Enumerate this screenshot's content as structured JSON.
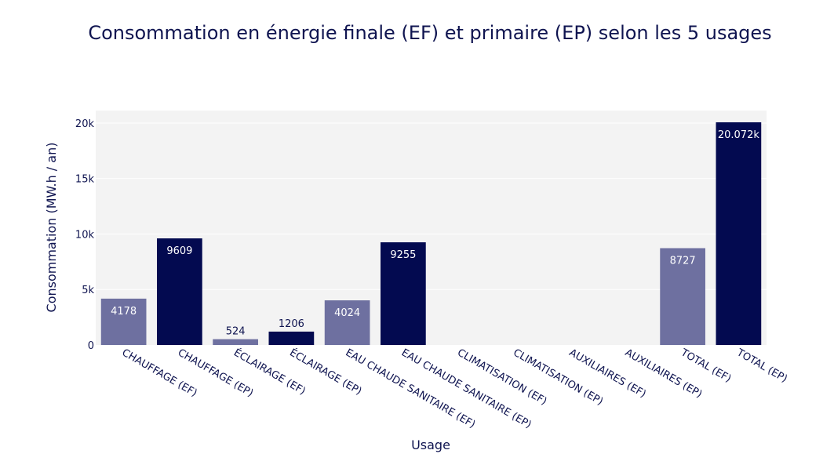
{
  "chart_data": {
    "type": "bar",
    "title": "Consommation en énergie finale (EF) et primaire (EP) selon les 5 usages",
    "xlabel": "Usage",
    "ylabel": "Consommation (MW.h / an)",
    "ylim": [
      0,
      21130
    ],
    "yticks": [
      0,
      5000,
      10000,
      15000,
      20000
    ],
    "ytick_labels": [
      "0",
      "5k",
      "10k",
      "15k",
      "20k"
    ],
    "grid": true,
    "categories": [
      "CHAUFFAGE (EF)",
      "CHAUFFAGE (EP)",
      "ÉCLAIRAGE (EF)",
      "ÉCLAIRAGE (EP)",
      "EAU CHAUDE SANITAIRE (EF)",
      "EAU CHAUDE SANITAIRE (EP)",
      "CLIMATISATION (EF)",
      "CLIMATISATION (EP)",
      "AUXILIAIRES (EF)",
      "AUXILIAIRES (EP)",
      "TOTAL (EF)",
      "TOTAL (EP)"
    ],
    "values": [
      4178,
      9609,
      524,
      1206,
      4024,
      9255,
      0,
      0,
      0,
      0,
      8727,
      20072
    ],
    "data_labels": [
      "4178",
      "9609",
      "524",
      "1206",
      "4024",
      "9255",
      "",
      "",
      "",
      "",
      "8727",
      "20.072k"
    ],
    "kinds": [
      "EF",
      "EP",
      "EF",
      "EP",
      "EF",
      "EP",
      "EF",
      "EP",
      "EF",
      "EP",
      "EF",
      "EP"
    ]
  },
  "colors": {
    "EF": "#6e70a0",
    "EP": "#030a50",
    "text": "#0f1450",
    "plot_bg": "#f3f3f3",
    "grid": "#ffffff"
  }
}
